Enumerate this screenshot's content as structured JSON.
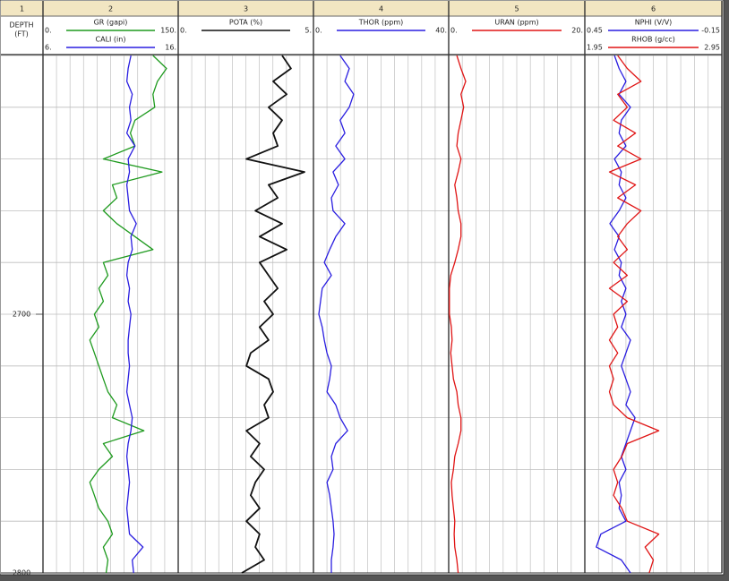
{
  "chart_data": {
    "type": "line",
    "depth_header": "DEPTH",
    "depth_unit": "(FT)",
    "ylim": [
      2600,
      2800
    ],
    "yticks": [
      2700,
      2800
    ],
    "ygrid": [
      2600,
      2620,
      2640,
      2660,
      2680,
      2700,
      2720,
      2740,
      2760,
      2780,
      2800
    ],
    "x": [
      2600,
      2605,
      2610,
      2615,
      2620,
      2625,
      2630,
      2635,
      2640,
      2645,
      2650,
      2655,
      2660,
      2665,
      2670,
      2675,
      2680,
      2685,
      2690,
      2695,
      2700,
      2705,
      2710,
      2715,
      2720,
      2725,
      2730,
      2735,
      2740,
      2745,
      2750,
      2755,
      2760,
      2765,
      2770,
      2775,
      2780,
      2785,
      2790,
      2795,
      2800
    ],
    "tracks": [
      {
        "number": 1
      },
      {
        "number": 2,
        "curves": [
          {
            "name": "GR (gapi)",
            "color": "#1e9a1e",
            "scale": [
              {
                "value": 0,
                "label": "0."
              },
              {
                "value": 150,
                "label": "150."
              }
            ],
            "values": [
              122,
              137,
              127,
              122,
              124,
              102,
              97,
              102,
              67,
              132,
              77,
              82,
              67,
              82,
              102,
              122,
              67,
              72,
              62,
              67,
              57,
              62,
              52,
              57,
              62,
              67,
              72,
              82,
              77,
              112,
              67,
              77,
              62,
              52,
              57,
              62,
              72,
              77,
              67,
              72,
              70
            ]
          },
          {
            "name": "CALI (in)",
            "color": "#2a1ee0",
            "scale": [
              {
                "value": 6,
                "label": "6."
              },
              {
                "value": 16,
                "label": "16."
              }
            ],
            "values": [
              12.5,
              12.3,
              12.2,
              12.6,
              12.4,
              12.5,
              12.2,
              12.8,
              12.3,
              12.4,
              12.2,
              12.3,
              12.4,
              12.9,
              12.5,
              12.6,
              12.3,
              12.2,
              12.4,
              12.3,
              12.5,
              12.4,
              12.3,
              12.3,
              12.4,
              12.3,
              12.2,
              12.4,
              12.6,
              12.5,
              12.3,
              12.2,
              12.3,
              12.4,
              12.3,
              12.2,
              12.3,
              12.4,
              13.4,
              12.6,
              12.7
            ]
          }
        ]
      },
      {
        "number": 3,
        "curves": [
          {
            "name": "POTA (%)",
            "color": "#111111",
            "scale": [
              {
                "value": 0,
                "label": "0."
              },
              {
                "value": 5,
                "label": "5."
              }
            ],
            "values": [
              3.84,
              4.17,
              3.51,
              4.01,
              3.34,
              3.84,
              3.51,
              3.68,
              2.52,
              4.67,
              3.34,
              3.68,
              2.85,
              3.84,
              3.01,
              4.01,
              3.01,
              3.34,
              3.68,
              3.18,
              3.51,
              3.01,
              3.34,
              2.68,
              2.52,
              3.34,
              3.51,
              3.18,
              3.34,
              2.52,
              3.01,
              2.68,
              3.18,
              2.85,
              2.68,
              3.01,
              2.52,
              3.01,
              2.85,
              3.18,
              2.35
            ]
          }
        ]
      },
      {
        "number": 4,
        "curves": [
          {
            "name": "THOR (ppm)",
            "color": "#2a1ee0",
            "scale": [
              {
                "value": 0,
                "label": "0."
              },
              {
                "value": 40,
                "label": "40."
              }
            ],
            "values": [
              7.9,
              10.6,
              9.3,
              11.9,
              10.6,
              7.9,
              9.3,
              6.6,
              9.3,
              5.8,
              7.4,
              5.3,
              5.8,
              9.3,
              6.6,
              4.8,
              3.2,
              5.3,
              2.6,
              2.1,
              1.6,
              2.6,
              3.2,
              4.0,
              5.3,
              4.8,
              4.0,
              6.6,
              7.9,
              10.1,
              6.6,
              5.3,
              5.8,
              4.0,
              4.8,
              5.3,
              5.8,
              6.1,
              5.8,
              5.3,
              5.3
            ]
          }
        ]
      },
      {
        "number": 5,
        "curves": [
          {
            "name": "URAN (ppm)",
            "color": "#e01515",
            "scale": [
              {
                "value": 0,
                "label": "0."
              },
              {
                "value": 20,
                "label": "20."
              }
            ],
            "values": [
              1.2,
              1.8,
              2.5,
              1.8,
              2.2,
              1.8,
              1.4,
              1.2,
              1.8,
              1.4,
              0.9,
              1.2,
              1.4,
              1.8,
              1.8,
              1.4,
              0.9,
              0.3,
              0.1,
              0.1,
              0.1,
              0.4,
              0.5,
              0.3,
              0.5,
              0.7,
              1.2,
              1.4,
              1.8,
              1.8,
              1.4,
              0.9,
              0.7,
              0.4,
              0.5,
              0.7,
              0.9,
              0.8,
              0.9,
              1.2,
              1.4
            ]
          }
        ]
      },
      {
        "number": 6,
        "curves": [
          {
            "name": "NPHI (V/V)",
            "color": "#2a1ee0",
            "scale": [
              0.45,
              -0.15
            ],
            "values": [
              0.32,
              0.3,
              0.27,
              0.3,
              0.25,
              0.29,
              0.3,
              0.27,
              0.32,
              0.29,
              0.3,
              0.27,
              0.3,
              0.34,
              0.3,
              0.32,
              0.29,
              0.3,
              0.27,
              0.29,
              0.27,
              0.29,
              0.25,
              0.27,
              0.29,
              0.27,
              0.25,
              0.27,
              0.23,
              0.25,
              0.27,
              0.29,
              0.27,
              0.3,
              0.29,
              0.3,
              0.27,
              0.38,
              0.4,
              0.29,
              0.25
            ]
          },
          {
            "name": "RHOB (g/cc)",
            "color": "#e01515",
            "scale": [
              1.95,
              2.95
            ],
            "values": [
              2.19,
              2.26,
              2.36,
              2.19,
              2.26,
              2.16,
              2.32,
              2.19,
              2.36,
              2.13,
              2.32,
              2.19,
              2.36,
              2.26,
              2.19,
              2.26,
              2.16,
              2.26,
              2.13,
              2.26,
              2.16,
              2.19,
              2.13,
              2.19,
              2.13,
              2.16,
              2.13,
              2.16,
              2.26,
              2.49,
              2.26,
              2.22,
              2.16,
              2.19,
              2.16,
              2.22,
              2.26,
              2.49,
              2.39,
              2.45,
              2.42
            ]
          }
        ]
      }
    ]
  }
}
